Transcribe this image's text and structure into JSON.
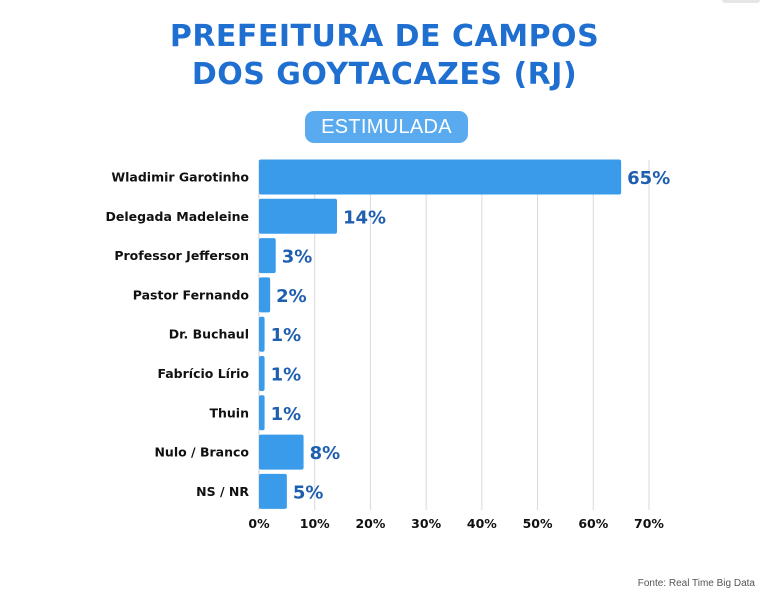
{
  "title_line1": "PREFEITURA DE CAMPOS",
  "title_line2": "DOS GOYTACAZES (RJ)",
  "badge": "ESTIMULADA",
  "source": "Fonte: Real Time Big Data",
  "colors": {
    "bar": "#3a9bea",
    "title": "#1f6fd1",
    "value_label": "#1f5fb0",
    "badge": "#5aaaf0"
  },
  "chart_data": {
    "type": "bar",
    "orientation": "horizontal",
    "categories": [
      "Wladimir Garotinho",
      "Delegada Madeleine",
      "Professor Jefferson",
      "Pastor Fernando",
      "Dr. Buchaul",
      "Fabrício Lírio",
      "Thuin",
      "Nulo / Branco",
      "NS / NR"
    ],
    "values": [
      65,
      14,
      3,
      2,
      1,
      1,
      1,
      8,
      5
    ],
    "value_labels": [
      "65%",
      "14%",
      "3%",
      "2%",
      "1%",
      "1%",
      "1%",
      "8%",
      "5%"
    ],
    "xlim": [
      0,
      70
    ],
    "xticks": [
      0,
      10,
      20,
      30,
      40,
      50,
      60,
      70
    ],
    "xtick_labels": [
      "0%",
      "10%",
      "20%",
      "30%",
      "40%",
      "50%",
      "60%",
      "70%"
    ],
    "grid": "vertical",
    "legend": "none"
  }
}
